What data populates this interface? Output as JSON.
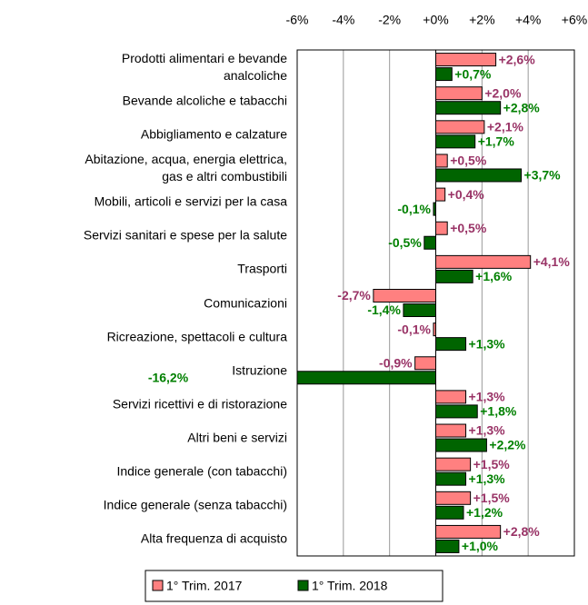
{
  "chart_data": {
    "type": "hbar",
    "categories": [
      "Prodotti alimentari e bevande\nanalcoliche",
      "Bevande alcoliche e tabacchi",
      "Abbigliamento e calzature",
      "Abitazione, acqua, energia elettrica,\ngas e altri combustibili",
      "Mobili, articoli e servizi per la casa",
      "Servizi sanitari e spese per la salute",
      "Trasporti",
      "Comunicazioni",
      "Ricreazione, spettacoli e cultura",
      "Istruzione",
      "Servizi ricettivi e di ristorazione",
      "Altri beni e servizi",
      "Indice generale (con tabacchi)",
      "Indice generale (senza tabacchi)",
      "Alta frequenza di acquisto"
    ],
    "series": [
      {
        "name": "1° Trim. 2017",
        "color": "#ff8080",
        "label_color": "#993366",
        "values": [
          2.6,
          2.0,
          2.1,
          0.5,
          0.4,
          0.5,
          4.1,
          -2.7,
          -0.1,
          -0.9,
          1.3,
          1.3,
          1.5,
          1.5,
          2.8
        ],
        "value_labels": [
          "+2,6%",
          "+2,0%",
          "+2,1%",
          "+0,5%",
          "+0,4%",
          "+0,5%",
          "+4,1%",
          "-2,7%",
          "-0,1%",
          "-0,9%",
          "+1,3%",
          "+1,3%",
          "+1,5%",
          "+1,5%",
          "+2,8%"
        ]
      },
      {
        "name": "1° Trim. 2018",
        "color": "#006400",
        "label_color": "#008000",
        "values": [
          0.7,
          2.8,
          1.7,
          3.7,
          -0.1,
          -0.5,
          1.6,
          -1.4,
          1.3,
          -16.2,
          1.8,
          2.2,
          1.3,
          1.2,
          1.0
        ],
        "value_labels": [
          "+0,7%",
          "+2,8%",
          "+1,7%",
          "+3,7%",
          "-0,1%",
          "-0,5%",
          "+1,6%",
          "-1,4%",
          "+1,3%",
          "-16,2%",
          "+1,8%",
          "+2,2%",
          "+1,3%",
          "+1,2%",
          "+1,0%"
        ]
      }
    ],
    "xlim": [
      -6,
      6
    ],
    "xticks": [
      {
        "value": -6,
        "label": "-6%"
      },
      {
        "value": -4,
        "label": "-4%"
      },
      {
        "value": -2,
        "label": "-2%"
      },
      {
        "value": 0,
        "label": "+0%"
      },
      {
        "value": 2,
        "label": "+2%"
      },
      {
        "value": 4,
        "label": "+4%"
      },
      {
        "value": 6,
        "label": "+6%"
      }
    ],
    "grid": true,
    "legend": "bottom"
  }
}
